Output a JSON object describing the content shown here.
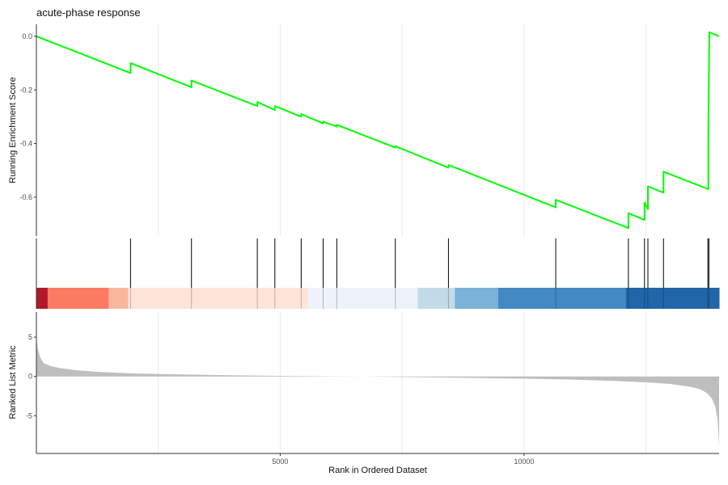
{
  "chart_data": {
    "type": "line",
    "title": "acute-phase response",
    "xlabel": "Rank in Ordered Dataset",
    "xlim": [
      0,
      14000
    ],
    "x_ticks": [
      {
        "value": 5000,
        "label": "5000"
      },
      {
        "value": 10000,
        "label": "10000"
      }
    ],
    "grid": true,
    "running_score": {
      "ylabel": "Running Enrichment Score",
      "ylim": [
        -0.745,
        0.045
      ],
      "y_ticks": [
        {
          "value": 0,
          "label": "0.0"
        },
        {
          "value": -0.2,
          "label": "-0.2"
        },
        {
          "value": -0.4,
          "label": "-0.4"
        },
        {
          "value": -0.6,
          "label": "-0.6"
        }
      ],
      "color": "#00ff00",
      "x": [
        0,
        1930,
        1930,
        3180,
        3180,
        4530,
        4530,
        4890,
        4890,
        5430,
        5430,
        5880,
        5880,
        6160,
        6160,
        7360,
        7360,
        8450,
        8450,
        10650,
        10650,
        12140,
        12140,
        12470,
        12470,
        12540,
        12540,
        12860,
        12860,
        13780,
        13780,
        13800,
        13800,
        14000
      ],
      "y": [
        0.0,
        -0.137,
        -0.1,
        -0.19,
        -0.165,
        -0.26,
        -0.245,
        -0.275,
        -0.26,
        -0.3,
        -0.29,
        -0.325,
        -0.318,
        -0.337,
        -0.33,
        -0.415,
        -0.41,
        -0.49,
        -0.48,
        -0.638,
        -0.61,
        -0.715,
        -0.66,
        -0.685,
        -0.62,
        -0.645,
        -0.56,
        -0.583,
        -0.505,
        -0.57,
        -0.37,
        0.015,
        0.015,
        0.0
      ]
    },
    "gene_hits": [
      1930,
      3180,
      4530,
      4890,
      5430,
      5880,
      6160,
      7360,
      8450,
      10650,
      12140,
      12470,
      12540,
      12860,
      13770,
      13790
    ],
    "color_bar": [
      {
        "from": 0,
        "to": 230,
        "color": "#b2182b"
      },
      {
        "from": 230,
        "to": 1480,
        "color": "#fb7a62"
      },
      {
        "from": 1480,
        "to": 1880,
        "color": "#fbb79e"
      },
      {
        "from": 1880,
        "to": 5570,
        "color": "#fde4d8"
      },
      {
        "from": 5570,
        "to": 7820,
        "color": "#eef2fa"
      },
      {
        "from": 7820,
        "to": 8580,
        "color": "#c3dbe9"
      },
      {
        "from": 8580,
        "to": 9470,
        "color": "#7ab3d8"
      },
      {
        "from": 9470,
        "to": 12090,
        "color": "#4389c4"
      },
      {
        "from": 12090,
        "to": 14000,
        "color": "#2066a8"
      }
    ],
    "ranked_metric": {
      "ylabel": "Ranked List Metric",
      "ylim": [
        -9.8,
        8.2
      ],
      "y_ticks": [
        {
          "value": 5,
          "label": "5"
        },
        {
          "value": 0,
          "label": "0"
        },
        {
          "value": -5,
          "label": "-5"
        }
      ],
      "fill_color": "#bebebe",
      "x": [
        0,
        30,
        80,
        150,
        300,
        500,
        800,
        1200,
        2000,
        3000,
        4000,
        5000,
        6000,
        6800,
        7000,
        8000,
        9000,
        10000,
        11000,
        12000,
        12500,
        13000,
        13400,
        13600,
        13750,
        13850,
        13920,
        13970,
        14000
      ],
      "y": [
        5.0,
        3.5,
        2.4,
        1.7,
        1.3,
        1.05,
        0.8,
        0.6,
        0.38,
        0.25,
        0.15,
        0.07,
        0.02,
        0.0,
        -0.03,
        -0.1,
        -0.18,
        -0.28,
        -0.4,
        -0.6,
        -0.75,
        -0.95,
        -1.3,
        -1.6,
        -2.1,
        -2.8,
        -3.8,
        -5.5,
        -8.9
      ]
    }
  }
}
